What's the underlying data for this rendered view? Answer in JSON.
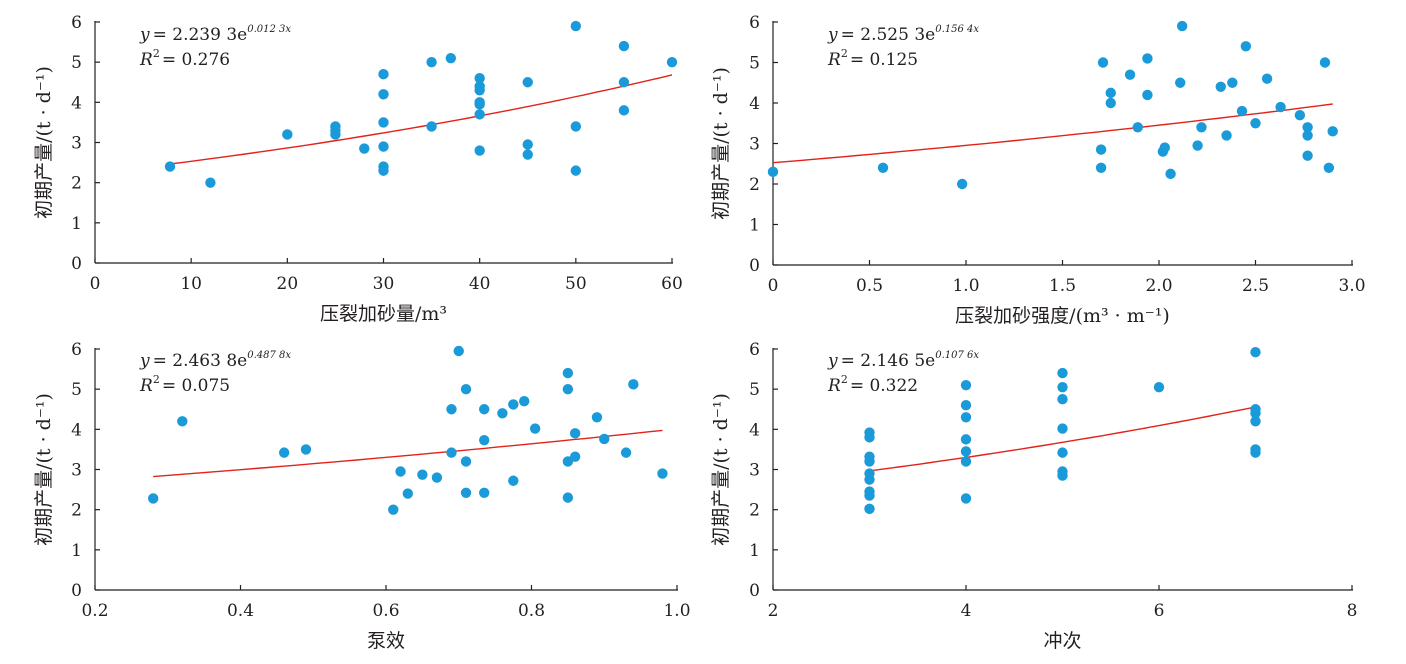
{
  "chart_data": [
    {
      "type": "scatter",
      "xlabel": "压裂加砂量/m³",
      "ylabel": "初期产量/(t · d⁻¹)",
      "xlim": [
        0,
        60
      ],
      "ylim": [
        0,
        6
      ],
      "xticks": [
        "0",
        "10",
        "20",
        "30",
        "40",
        "50",
        "60"
      ],
      "yticks": [
        "0",
        "1",
        "2",
        "3",
        "4",
        "5",
        "6"
      ],
      "equation": {
        "lhs": "y",
        "coef": "= 2.239 3e",
        "exp": "0.012 3x",
        "r2_label": "R",
        "r2_sup": "2",
        "r2_value": "= 0.276"
      },
      "trend": {
        "a": 2.2393,
        "b": 0.0123,
        "x_range": [
          7.8,
          60
        ]
      },
      "points": [
        [
          7.8,
          2.4
        ],
        [
          12,
          2.0
        ],
        [
          20,
          3.2
        ],
        [
          25,
          3.4
        ],
        [
          25,
          3.3
        ],
        [
          25,
          3.2
        ],
        [
          28,
          2.85
        ],
        [
          30,
          4.7
        ],
        [
          30,
          4.2
        ],
        [
          30,
          3.5
        ],
        [
          30,
          2.9
        ],
        [
          30,
          2.4
        ],
        [
          30,
          2.3
        ],
        [
          35,
          5.0
        ],
        [
          35,
          3.4
        ],
        [
          37,
          5.1
        ],
        [
          40,
          4.6
        ],
        [
          40,
          4.4
        ],
        [
          40,
          4.3
        ],
        [
          40,
          4.0
        ],
        [
          40,
          3.95
        ],
        [
          40,
          3.7
        ],
        [
          40,
          2.8
        ],
        [
          45,
          4.5
        ],
        [
          45,
          2.95
        ],
        [
          45,
          2.7
        ],
        [
          50,
          5.9
        ],
        [
          50,
          3.4
        ],
        [
          50,
          2.3
        ],
        [
          55,
          5.4
        ],
        [
          55,
          4.5
        ],
        [
          55,
          3.8
        ],
        [
          60,
          5.0
        ]
      ]
    },
    {
      "type": "scatter",
      "xlabel": "压裂加砂强度/(m³ · m⁻¹)",
      "ylabel": "初期产量/(t · d⁻¹)",
      "xlim": [
        0,
        3.0
      ],
      "ylim": [
        0,
        6
      ],
      "xticks": [
        "0",
        "0.5",
        "1.0",
        "1.5",
        "2.0",
        "2.5",
        "3.0"
      ],
      "yticks": [
        "0",
        "1",
        "2",
        "3",
        "4",
        "5",
        "6"
      ],
      "equation": {
        "lhs": "y",
        "coef": "= 2.525 3e",
        "exp": "0.156 4x",
        "r2_label": "R",
        "r2_sup": "2",
        "r2_value": "= 0.125"
      },
      "trend": {
        "a": 2.5253,
        "b": 0.1564,
        "x_range": [
          0,
          2.9
        ]
      },
      "points": [
        [
          0,
          2.3
        ],
        [
          0.57,
          2.4
        ],
        [
          0.98,
          2.0
        ],
        [
          1.7,
          2.85
        ],
        [
          1.7,
          2.4
        ],
        [
          1.71,
          5.0
        ],
        [
          1.75,
          4.25
        ],
        [
          1.75,
          4.0
        ],
        [
          1.85,
          4.7
        ],
        [
          1.89,
          3.4
        ],
        [
          1.94,
          5.1
        ],
        [
          1.94,
          4.2
        ],
        [
          2.02,
          2.8
        ],
        [
          2.03,
          2.9
        ],
        [
          2.06,
          2.25
        ],
        [
          2.11,
          4.5
        ],
        [
          2.12,
          5.9
        ],
        [
          2.2,
          2.95
        ],
        [
          2.22,
          3.4
        ],
        [
          2.32,
          4.4
        ],
        [
          2.35,
          3.2
        ],
        [
          2.38,
          4.5
        ],
        [
          2.43,
          3.8
        ],
        [
          2.45,
          5.4
        ],
        [
          2.5,
          3.5
        ],
        [
          2.56,
          4.6
        ],
        [
          2.63,
          3.9
        ],
        [
          2.73,
          3.7
        ],
        [
          2.77,
          3.4
        ],
        [
          2.77,
          3.2
        ],
        [
          2.77,
          2.7
        ],
        [
          2.86,
          5.0
        ],
        [
          2.88,
          2.4
        ],
        [
          2.9,
          3.3
        ]
      ]
    },
    {
      "type": "scatter",
      "xlabel": "泵效",
      "ylabel": "初期产量/(t · d⁻¹)",
      "xlim": [
        0.2,
        1.0
      ],
      "ylim": [
        0,
        6
      ],
      "xticks": [
        "0.2",
        "0.4",
        "0.6",
        "0.8",
        "1.0"
      ],
      "yticks": [
        "0",
        "1",
        "2",
        "3",
        "4",
        "5",
        "6"
      ],
      "equation": {
        "lhs": "y",
        "coef": "= 2.463 8e",
        "exp": "0.487 8x",
        "r2_label": "R",
        "r2_sup": "2",
        "r2_value": "= 0.075"
      },
      "trend": {
        "a": 2.4638,
        "b": 0.4878,
        "x_range": [
          0.28,
          0.98
        ]
      },
      "points": [
        [
          0.28,
          2.28
        ],
        [
          0.32,
          4.2
        ],
        [
          0.46,
          3.42
        ],
        [
          0.49,
          3.5
        ],
        [
          0.61,
          2.0
        ],
        [
          0.62,
          2.95
        ],
        [
          0.63,
          2.4
        ],
        [
          0.65,
          2.87
        ],
        [
          0.67,
          2.8
        ],
        [
          0.69,
          3.42
        ],
        [
          0.69,
          4.5
        ],
        [
          0.7,
          5.95
        ],
        [
          0.71,
          2.42
        ],
        [
          0.71,
          3.2
        ],
        [
          0.71,
          5.0
        ],
        [
          0.735,
          4.5
        ],
        [
          0.735,
          3.73
        ],
        [
          0.735,
          2.42
        ],
        [
          0.76,
          4.4
        ],
        [
          0.775,
          4.62
        ],
        [
          0.775,
          2.72
        ],
        [
          0.79,
          4.7
        ],
        [
          0.805,
          4.02
        ],
        [
          0.85,
          5.4
        ],
        [
          0.85,
          5.0
        ],
        [
          0.85,
          3.2
        ],
        [
          0.85,
          2.3
        ],
        [
          0.86,
          3.9
        ],
        [
          0.86,
          3.32
        ],
        [
          0.89,
          4.3
        ],
        [
          0.9,
          3.76
        ],
        [
          0.93,
          3.42
        ],
        [
          0.94,
          5.12
        ],
        [
          0.98,
          2.9
        ]
      ]
    },
    {
      "type": "scatter",
      "xlabel": "冲次",
      "ylabel": "初期产量/(t · d⁻¹)",
      "xlim": [
        2,
        8
      ],
      "ylim": [
        0,
        6
      ],
      "xticks": [
        "2",
        "4",
        "6",
        "8"
      ],
      "yticks": [
        "0",
        "1",
        "2",
        "3",
        "4",
        "5",
        "6"
      ],
      "equation": {
        "lhs": "y",
        "coef": "= 2.146 5e",
        "exp": "0.107 6x",
        "r2_label": "R",
        "r2_sup": "2",
        "r2_value": "= 0.322"
      },
      "trend": {
        "a": 2.1465,
        "b": 0.1076,
        "x_range": [
          3,
          7
        ]
      },
      "points": [
        [
          3,
          3.92
        ],
        [
          3,
          3.8
        ],
        [
          3,
          3.32
        ],
        [
          3,
          3.2
        ],
        [
          3,
          2.9
        ],
        [
          3,
          2.75
        ],
        [
          3,
          2.45
        ],
        [
          3,
          2.35
        ],
        [
          3,
          2.02
        ],
        [
          4,
          5.1
        ],
        [
          4,
          4.6
        ],
        [
          4,
          4.3
        ],
        [
          4,
          3.75
        ],
        [
          4,
          3.45
        ],
        [
          4,
          3.2
        ],
        [
          4,
          2.28
        ],
        [
          5,
          5.4
        ],
        [
          5,
          5.05
        ],
        [
          5,
          4.75
        ],
        [
          5,
          4.02
        ],
        [
          5,
          3.42
        ],
        [
          5,
          2.95
        ],
        [
          5,
          2.85
        ],
        [
          6,
          5.05
        ],
        [
          7,
          5.92
        ],
        [
          7,
          4.5
        ],
        [
          7,
          4.4
        ],
        [
          7,
          4.2
        ],
        [
          7,
          3.5
        ],
        [
          7,
          3.42
        ]
      ]
    }
  ],
  "colors": {
    "point": "#1a9ad8",
    "trend": "#e2231a",
    "axis": "#231f20"
  }
}
